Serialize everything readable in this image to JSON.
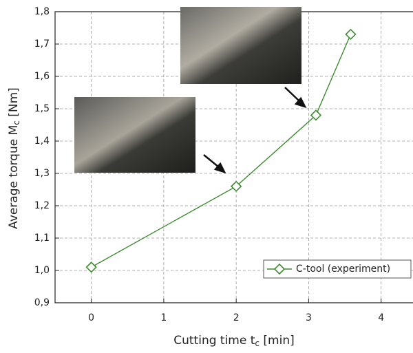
{
  "chart_data": {
    "type": "line",
    "x_label": [
      "Cutting time t",
      "c",
      " [min]"
    ],
    "y_label": [
      "Average torque M",
      "c",
      " [Nm]"
    ],
    "x": [
      0,
      2,
      3.1,
      3.58
    ],
    "series": [
      {
        "name": "C-tool (experiment)",
        "color": "#3d8b2f",
        "values": [
          1.01,
          1.26,
          1.48,
          1.73
        ]
      }
    ],
    "xlim": [
      -0.5,
      4.44
    ],
    "ylim": [
      0.9,
      1.8
    ],
    "xticks": [
      0,
      1,
      2,
      3,
      4
    ],
    "yticks": [
      {
        "value": 0.9,
        "label": "0,9"
      },
      {
        "value": 1.0,
        "label": "1,0"
      },
      {
        "value": 1.1,
        "label": "1,1"
      },
      {
        "value": 1.2,
        "label": "1,2"
      },
      {
        "value": 1.3,
        "label": "1,3"
      },
      {
        "value": 1.4,
        "label": "1,4"
      },
      {
        "value": 1.5,
        "label": "1,5"
      },
      {
        "value": 1.6,
        "label": "1,6"
      },
      {
        "value": 1.7,
        "label": "1,7"
      },
      {
        "value": 1.8,
        "label": "1,8"
      }
    ],
    "grid": true,
    "legend": "lower right"
  }
}
